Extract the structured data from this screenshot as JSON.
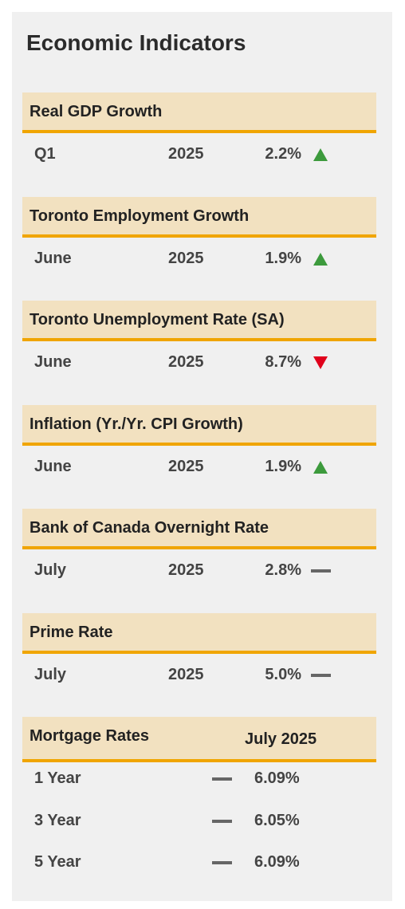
{
  "title": "Economic Indicators",
  "indicators": [
    {
      "name": "Real GDP Growth",
      "period": "Q1",
      "year": "2025",
      "value": "2.2%",
      "trend": "up"
    },
    {
      "name": "Toronto Employment Growth",
      "period": "June",
      "year": "2025",
      "value": "1.9%",
      "trend": "up"
    },
    {
      "name": "Toronto Unemployment Rate (SA)",
      "period": "June",
      "year": "2025",
      "value": "8.7%",
      "trend": "down"
    },
    {
      "name": "Inflation (Yr./Yr. CPI Growth)",
      "period": "June",
      "year": "2025",
      "value": "1.9%",
      "trend": "up"
    },
    {
      "name": "Bank of Canada Overnight Rate",
      "period": "July",
      "year": "2025",
      "value": "2.8%",
      "trend": "flat"
    },
    {
      "name": "Prime Rate",
      "period": "July",
      "year": "2025",
      "value": "5.0%",
      "trend": "flat"
    }
  ],
  "mortgage": {
    "title": "Mortgage Rates",
    "period": "July 2025",
    "rows": [
      {
        "term": "1 Year",
        "value": "6.09%",
        "trend": "flat"
      },
      {
        "term": "3 Year",
        "value": "6.05%",
        "trend": "flat"
      },
      {
        "term": "5 Year",
        "value": "6.09%",
        "trend": "flat"
      }
    ]
  }
}
